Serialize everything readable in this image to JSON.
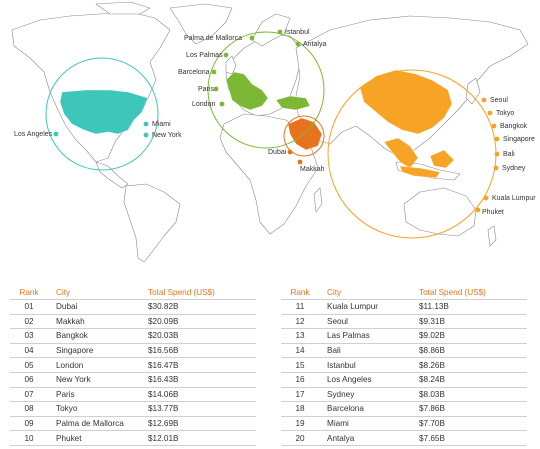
{
  "map": {
    "groups": [
      {
        "name": "americas",
        "color": "#3fc6bb",
        "cities": [
          {
            "name": "Los Angeles",
            "label": "Los Angeles"
          },
          {
            "name": "Miami",
            "label": "Miami"
          },
          {
            "name": "New York",
            "label": "New York"
          }
        ]
      },
      {
        "name": "europe",
        "color": "#7cb833",
        "cities": [
          {
            "name": "Palma de Mallorca",
            "label": "Palma de Mallorca"
          },
          {
            "name": "Los Palmas",
            "label": "Los Palmas"
          },
          {
            "name": "Barcelona",
            "label": "Barcelona"
          },
          {
            "name": "Paris",
            "label": "Paris"
          },
          {
            "name": "London",
            "label": "London"
          },
          {
            "name": "Istanbul",
            "label": "Istanbul"
          },
          {
            "name": "Antalya",
            "label": "Antalya"
          }
        ]
      },
      {
        "name": "middle-east",
        "color": "#e8731c",
        "cities": [
          {
            "name": "Dubai",
            "label": "Dubai"
          },
          {
            "name": "Makkah",
            "label": "Makkah"
          }
        ]
      },
      {
        "name": "asia",
        "color": "#f7a325",
        "cities": [
          {
            "name": "Seoul",
            "label": "Seoul"
          },
          {
            "name": "Tokyo",
            "label": "Tokyo"
          },
          {
            "name": "Bangkok",
            "label": "Bangkok"
          },
          {
            "name": "Singapore",
            "label": "Singapore"
          },
          {
            "name": "Bali",
            "label": "Bali"
          },
          {
            "name": "Sydney",
            "label": "Sydney"
          },
          {
            "name": "Kuala Lumpur",
            "label": "Kuala Lumpur"
          },
          {
            "name": "Phuket",
            "label": "Phuket"
          }
        ]
      }
    ]
  },
  "table": {
    "headers": {
      "rank": "Rank",
      "city": "City",
      "spend": "Total Spend (US$)"
    },
    "left": [
      {
        "rank": "01",
        "city": "Dubai",
        "spend": "$30.82B"
      },
      {
        "rank": "02",
        "city": "Makkah",
        "spend": "$20.09B"
      },
      {
        "rank": "03",
        "city": "Bangkok",
        "spend": "$20.03B"
      },
      {
        "rank": "04",
        "city": "Singapore",
        "spend": "$16.56B"
      },
      {
        "rank": "05",
        "city": "London",
        "spend": "$16.47B"
      },
      {
        "rank": "06",
        "city": "New York",
        "spend": "$16.43B"
      },
      {
        "rank": "07",
        "city": "Paris",
        "spend": "$14.06B"
      },
      {
        "rank": "08",
        "city": "Tokyo",
        "spend": "$13.77B"
      },
      {
        "rank": "09",
        "city": "Palma de Mallorca",
        "spend": "$12.69B"
      },
      {
        "rank": "10",
        "city": "Phuket",
        "spend": "$12.01B"
      }
    ],
    "right": [
      {
        "rank": "11",
        "city": "Kuala Lumpur",
        "spend": "$11.13B"
      },
      {
        "rank": "12",
        "city": "Seoul",
        "spend": "$9.31B"
      },
      {
        "rank": "13",
        "city": "Las Palmas",
        "spend": "$9.02B"
      },
      {
        "rank": "14",
        "city": "Bali",
        "spend": "$8.86B"
      },
      {
        "rank": "15",
        "city": "Istanbul",
        "spend": "$8.26B"
      },
      {
        "rank": "16",
        "city": "Los Angeles",
        "spend": "$8.24B"
      },
      {
        "rank": "17",
        "city": "Sydney",
        "spend": "$8.03B"
      },
      {
        "rank": "18",
        "city": "Barcelona",
        "spend": "$7.86B"
      },
      {
        "rank": "19",
        "city": "Miami",
        "spend": "$7.70B"
      },
      {
        "rank": "20",
        "city": "Antalya",
        "spend": "$7.65B"
      }
    ]
  }
}
